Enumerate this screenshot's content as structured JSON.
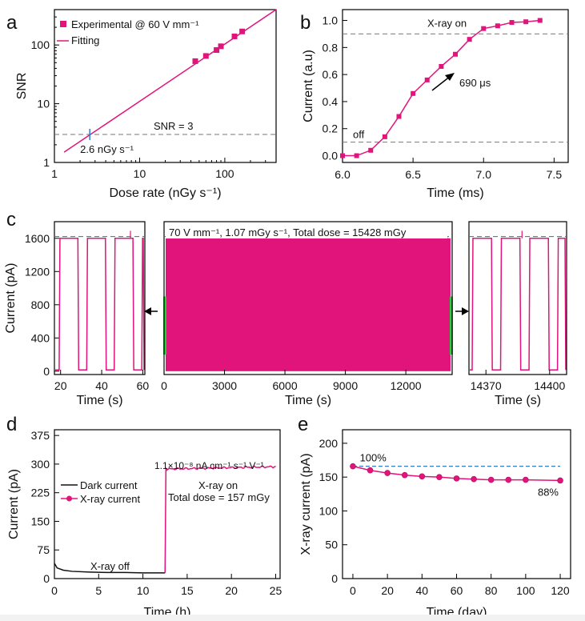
{
  "panel_letters": {
    "a": "a",
    "b": "b",
    "c": "c",
    "d": "d",
    "e": "e"
  },
  "colors": {
    "magenta": "#e0147a",
    "green": "#2ecc40",
    "black": "#111111",
    "blue_dash": "#2a7fd0",
    "grey_dash": "#777777"
  },
  "chart_data": [
    {
      "id": "a",
      "type": "scatter",
      "title": "",
      "xlabel": "Dose rate (nGy s⁻¹)",
      "ylabel": "SNR",
      "xscale": "log",
      "yscale": "log",
      "xlim": [
        1,
        400
      ],
      "ylim": [
        1,
        400
      ],
      "xticks": [
        1,
        10,
        100
      ],
      "xtick_labels": [
        "1",
        "10",
        "100"
      ],
      "yticks": [
        1,
        10,
        100
      ],
      "ytick_labels": [
        "1",
        "10",
        "100"
      ],
      "series": [
        {
          "name": "Experimental @ 60 V mm⁻¹",
          "kind": "markers",
          "x": [
            45,
            60,
            80,
            90,
            130,
            160
          ],
          "y": [
            53,
            65,
            82,
            95,
            140,
            170
          ]
        },
        {
          "name": "Fitting",
          "kind": "line",
          "x": [
            1.3,
            400
          ],
          "y": [
            1.5,
            400
          ]
        }
      ],
      "reference_line": {
        "y": 3,
        "label": "SNR = 3"
      },
      "annotation": {
        "x": 2.6,
        "y": 3,
        "label": "2.6 nGy s⁻¹"
      },
      "legend": "top-left"
    },
    {
      "id": "b",
      "type": "line",
      "xlabel": "Time (ms)",
      "ylabel": "Current (a.u)",
      "xlim": [
        6.0,
        7.6
      ],
      "ylim": [
        -0.05,
        1.08
      ],
      "xticks": [
        6.0,
        6.5,
        7.0,
        7.5
      ],
      "xtick_labels": [
        "6.0",
        "6.5",
        "7.0",
        "7.5"
      ],
      "yticks": [
        0,
        0.2,
        0.4,
        0.6,
        0.8,
        1.0
      ],
      "ytick_labels": [
        "0.0",
        "0.2",
        "0.4",
        "0.6",
        "0.8",
        "1.0"
      ],
      "series": [
        {
          "name": "response",
          "x": [
            6.0,
            6.1,
            6.2,
            6.3,
            6.4,
            6.5,
            6.6,
            6.7,
            6.8,
            6.9,
            7.0,
            7.1,
            7.2,
            7.3,
            7.4
          ],
          "y": [
            0.0,
            0.0,
            0.04,
            0.14,
            0.29,
            0.46,
            0.56,
            0.66,
            0.75,
            0.86,
            0.94,
            0.96,
            0.985,
            0.99,
            1.0
          ]
        }
      ],
      "reference_lines": [
        {
          "y": 0.9,
          "label": "X-ray on"
        },
        {
          "y": 0.1,
          "label": "off"
        }
      ],
      "arrow_annotation": "690 μs"
    },
    {
      "id": "c",
      "type": "line",
      "ylabel": "Current (pA)",
      "xlabel": "Time (s)",
      "ylim": [
        -40,
        1800
      ],
      "yticks": [
        0,
        400,
        800,
        1200,
        1600
      ],
      "ytick_labels": [
        "0",
        "400",
        "800",
        "1200",
        "1600"
      ],
      "reference_line": {
        "y": 1620
      },
      "subplots": [
        {
          "name": "left zoom",
          "xlim": [
            17,
            61
          ],
          "xticks": [
            20,
            40,
            60
          ],
          "xtick_labels": [
            "20",
            "40",
            "60"
          ],
          "pulse_period_s": 13.4,
          "pulse_high_pA": 1600,
          "pulse_low_pA": 15
        },
        {
          "name": "full run",
          "xlim": [
            0,
            14300
          ],
          "xticks": [
            0,
            3000,
            6000,
            9000,
            12000
          ],
          "xtick_labels": [
            "0",
            "3000",
            "6000",
            "9000",
            "12000"
          ],
          "annotation": "70 V mm⁻¹, 1.07 mGy s⁻¹, Total dose = 15428 mGy"
        },
        {
          "name": "right zoom",
          "xlim": [
            14362,
            14408
          ],
          "xticks": [
            14370,
            14400
          ],
          "xtick_labels": [
            "14370",
            "14400"
          ],
          "pulse_period_s": 13.4,
          "pulse_high_pA": 1600,
          "pulse_low_pA": 15
        }
      ]
    },
    {
      "id": "d",
      "type": "line",
      "xlabel": "Time (h)",
      "ylabel": "Current (pA)",
      "xlim": [
        0,
        25.5
      ],
      "ylim": [
        0,
        390
      ],
      "xticks": [
        0,
        5,
        10,
        15,
        20,
        25
      ],
      "xtick_labels": [
        "0",
        "5",
        "10",
        "15",
        "20",
        "25"
      ],
      "yticks": [
        0,
        75,
        150,
        225,
        300,
        375
      ],
      "ytick_labels": [
        "0",
        "75",
        "150",
        "225",
        "300",
        "375"
      ],
      "series": [
        {
          "name": "Dark current",
          "x": [
            0,
            0.3,
            1,
            2,
            4,
            6,
            8,
            10,
            12.5
          ],
          "y": [
            40,
            28,
            22,
            19,
            17,
            16,
            16,
            15,
            15
          ]
        },
        {
          "name": "X-ray current",
          "x": [
            12.5,
            12.6,
            15,
            18,
            20,
            22,
            25
          ],
          "y": [
            15,
            290,
            287,
            288,
            290,
            292,
            293
          ]
        }
      ],
      "annotations": [
        "1.1×10⁻⁸ nA cm⁻¹ s⁻¹ V⁻¹",
        "X-ray on",
        "Total dose = 157 mGy",
        "X-ray off"
      ],
      "legend": "middle-left"
    },
    {
      "id": "e",
      "type": "line",
      "xlabel": "Time (day)",
      "ylabel": "X-ray current (pA)",
      "xlim": [
        -6,
        126
      ],
      "ylim": [
        0,
        220
      ],
      "xticks": [
        0,
        20,
        40,
        60,
        80,
        100,
        120
      ],
      "xtick_labels": [
        "0",
        "20",
        "40",
        "60",
        "80",
        "100",
        "120"
      ],
      "yticks": [
        0,
        50,
        100,
        150,
        200
      ],
      "ytick_labels": [
        "0",
        "50",
        "100",
        "150",
        "200"
      ],
      "series": [
        {
          "name": "X-ray current",
          "x": [
            0,
            10,
            20,
            30,
            40,
            50,
            60,
            70,
            80,
            90,
            100,
            120
          ],
          "y": [
            166,
            160,
            156,
            153,
            151,
            150,
            148,
            147,
            146,
            146,
            146,
            145
          ]
        }
      ],
      "reference_line": {
        "y": 166,
        "label": "100%"
      },
      "end_label": "88%"
    }
  ]
}
